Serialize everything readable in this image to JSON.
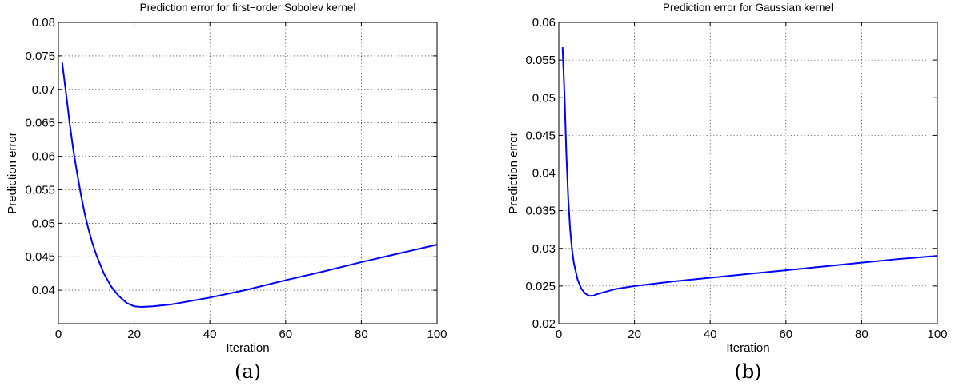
{
  "chart_data": [
    {
      "type": "line",
      "title": "Prediction error for first−order Sobolev kernel",
      "xlabel": "Iteration",
      "ylabel": "Prediction error",
      "caption": "(a)",
      "xlim": [
        0,
        100
      ],
      "ylim": [
        0.035,
        0.08
      ],
      "xticks": [
        0,
        20,
        40,
        60,
        80,
        100
      ],
      "yticks": [
        0.04,
        0.045,
        0.05,
        0.055,
        0.06,
        0.065,
        0.07,
        0.075,
        0.08
      ],
      "grid": true,
      "series_color": "#0000ff",
      "x": [
        1,
        2,
        3,
        4,
        5,
        6,
        7,
        8,
        9,
        10,
        12,
        14,
        16,
        18,
        20,
        22,
        25,
        30,
        40,
        50,
        60,
        70,
        80,
        90,
        100
      ],
      "y": [
        0.074,
        0.0695,
        0.0648,
        0.0607,
        0.0573,
        0.0541,
        0.0513,
        0.049,
        0.047,
        0.0453,
        0.0425,
        0.0405,
        0.0391,
        0.0381,
        0.0376,
        0.0375,
        0.0376,
        0.0379,
        0.0389,
        0.0401,
        0.0415,
        0.0428,
        0.0442,
        0.0455,
        0.0468
      ]
    },
    {
      "type": "line",
      "title": "Prediction error for Gaussian kernel",
      "xlabel": "Iteration",
      "ylabel": "Prediction error",
      "caption": "(b)",
      "xlim": [
        0,
        100
      ],
      "ylim": [
        0.02,
        0.06
      ],
      "xticks": [
        0,
        20,
        40,
        60,
        80,
        100
      ],
      "yticks": [
        0.02,
        0.025,
        0.03,
        0.035,
        0.04,
        0.045,
        0.05,
        0.055,
        0.06
      ],
      "grid": true,
      "series_color": "#0000ff",
      "x": [
        1,
        1.5,
        2,
        2.5,
        3,
        3.5,
        4,
        5,
        6,
        7,
        8,
        9,
        10,
        12,
        15,
        20,
        30,
        40,
        50,
        60,
        70,
        80,
        90,
        100
      ],
      "y": [
        0.0567,
        0.0505,
        0.0425,
        0.0365,
        0.0325,
        0.0298,
        0.028,
        0.0258,
        0.0246,
        0.024,
        0.0237,
        0.0237,
        0.0239,
        0.0242,
        0.0246,
        0.025,
        0.0256,
        0.0261,
        0.0266,
        0.0271,
        0.0276,
        0.0281,
        0.0286,
        0.029
      ]
    }
  ]
}
